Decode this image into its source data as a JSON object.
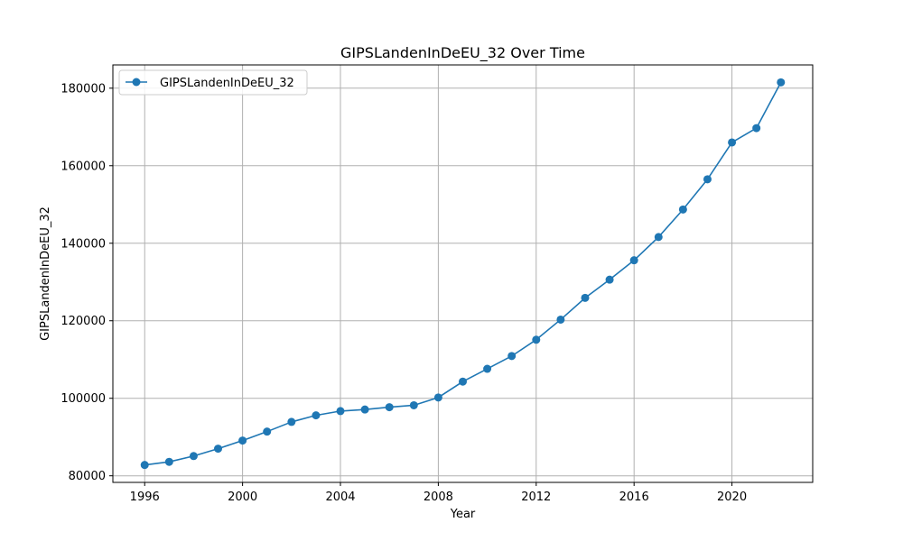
{
  "chart_data": {
    "type": "line",
    "title": "GIPSLandenInDeEU_32 Over Time",
    "xlabel": "Year",
    "ylabel": "GIPSLandenInDeEU_32",
    "xlim": [
      1994.7,
      2023.3
    ],
    "ylim": [
      78300,
      186000
    ],
    "x_ticks": [
      1996,
      2000,
      2004,
      2008,
      2012,
      2016,
      2020
    ],
    "y_ticks": [
      80000,
      100000,
      120000,
      140000,
      160000,
      180000
    ],
    "grid": true,
    "legend_position": "top-left",
    "series": [
      {
        "name": "GIPSLandenInDeEU_32",
        "color": "#1f77b4",
        "marker": "circle",
        "x": [
          1996,
          1997,
          1998,
          1999,
          2000,
          2001,
          2002,
          2003,
          2004,
          2005,
          2006,
          2007,
          2008,
          2009,
          2010,
          2011,
          2012,
          2013,
          2014,
          2015,
          2016,
          2017,
          2018,
          2019,
          2020,
          2021,
          2022
        ],
        "values": [
          82800,
          83600,
          85100,
          87000,
          89100,
          91400,
          93900,
          95600,
          96700,
          97100,
          97700,
          98200,
          100200,
          104300,
          107600,
          110900,
          115100,
          120300,
          125900,
          130600,
          135600,
          141600,
          148700,
          156500,
          166000,
          169700,
          181500
        ]
      }
    ]
  }
}
